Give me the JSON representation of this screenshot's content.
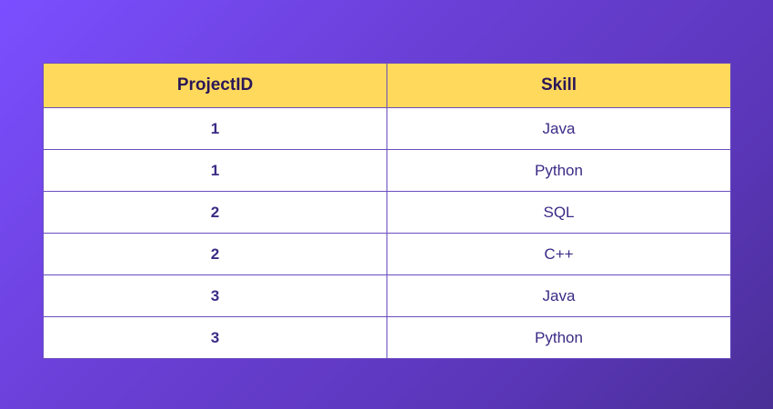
{
  "table": {
    "headers": [
      "ProjectID",
      "Skill"
    ],
    "rows": [
      {
        "project_id": "1",
        "skill": "Java"
      },
      {
        "project_id": "1",
        "skill": "Python"
      },
      {
        "project_id": "2",
        "skill": "SQL"
      },
      {
        "project_id": "2",
        "skill": "C++"
      },
      {
        "project_id": "3",
        "skill": "Java"
      },
      {
        "project_id": "3",
        "skill": "Python"
      }
    ]
  },
  "colors": {
    "background_start": "#7b4fff",
    "background_end": "#4a2f96",
    "header_fill": "#ffd95c",
    "header_text": "#2a1758",
    "cell_text": "#3b2a86",
    "border": "#6a4cbf"
  }
}
